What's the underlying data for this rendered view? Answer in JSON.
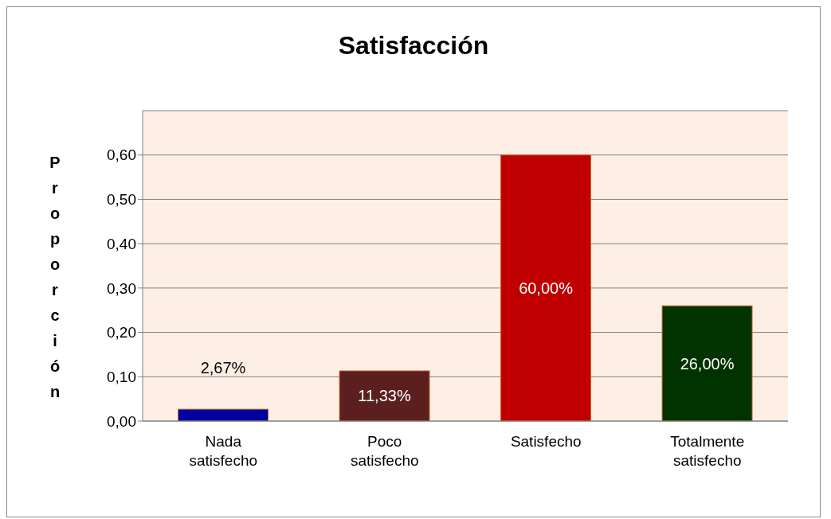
{
  "chart_data": {
    "type": "bar",
    "title": "Satisfacción",
    "ylabel": "Proporción",
    "categories": [
      "Nada satisfecho",
      "Poco satisfecho",
      "Satisfecho",
      "Totalmente satisfecho"
    ],
    "values": [
      0.0267,
      0.1133,
      0.6,
      0.26
    ],
    "colors": [
      "#0000a0",
      "#5c1f1f",
      "#c00000",
      "#003300"
    ],
    "value_labels": [
      "2,67%",
      "11,33%",
      "60,00%",
      "26,00%"
    ],
    "ylim": [
      0,
      0.7
    ],
    "yticks": [
      {
        "value": 0,
        "label": "0,00"
      },
      {
        "value": 0.1,
        "label": "0,10"
      },
      {
        "value": 0.2,
        "label": "0,20"
      },
      {
        "value": 0.3,
        "label": "0,30"
      },
      {
        "value": 0.4,
        "label": "0,40"
      },
      {
        "value": 0.5,
        "label": "0,50"
      },
      {
        "value": 0.6,
        "label": "0,60"
      }
    ],
    "grid": "y",
    "legend": false
  }
}
